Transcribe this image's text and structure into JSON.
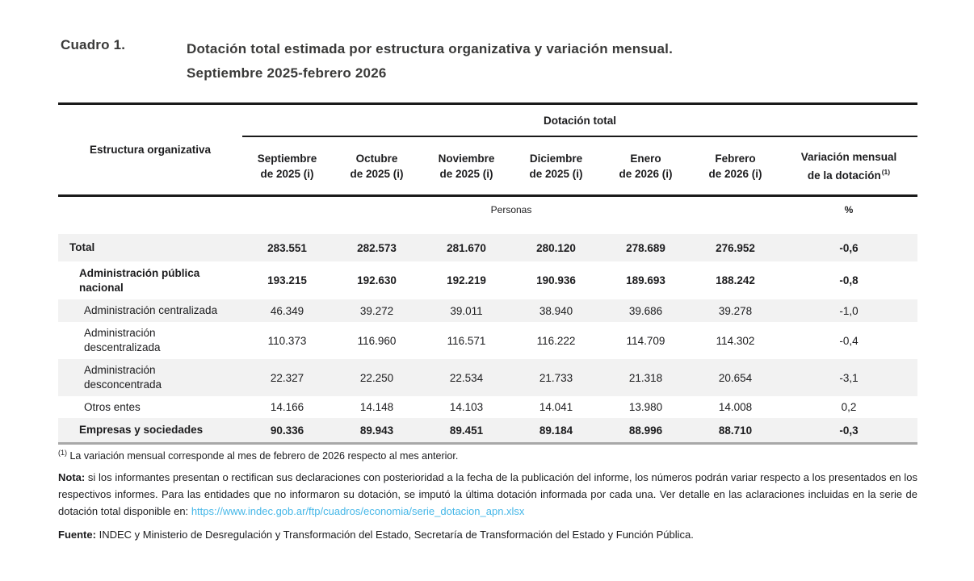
{
  "title": {
    "label": "Cuadro 1.",
    "line1": "Dotación total estimada por estructura organizativa y variación mensual.",
    "line2": "Septiembre 2025-febrero 2026"
  },
  "table": {
    "spanner": "Dotación total",
    "row_header": "Estructura organizativa",
    "columns": [
      {
        "line1": "Septiembre",
        "line2": "de 2025 (i)"
      },
      {
        "line1": "Octubre",
        "line2": "de 2025 (i)"
      },
      {
        "line1": "Noviembre",
        "line2": "de 2025 (i)"
      },
      {
        "line1": "Diciembre",
        "line2": "de 2025 (i)"
      },
      {
        "line1": "Enero",
        "line2": "de 2026 (i)"
      },
      {
        "line1": "Febrero",
        "line2": "de 2026 (i)"
      },
      {
        "line1": "Variación mensual",
        "line2": "de la dotación",
        "sup": "(1)"
      }
    ],
    "units": {
      "personas": "Personas",
      "percent": "%"
    },
    "rows": [
      {
        "label": "Total",
        "values": [
          "283.551",
          "282.573",
          "281.670",
          "280.120",
          "278.689",
          "276.952"
        ],
        "variation": "-0,6"
      },
      {
        "label": "Administración pública nacional",
        "values": [
          "193.215",
          "192.630",
          "192.219",
          "190.936",
          "189.693",
          "188.242"
        ],
        "variation": "-0,8"
      },
      {
        "label": "Administración centralizada",
        "values": [
          "46.349",
          "39.272",
          "39.011",
          "38.940",
          "39.686",
          "39.278"
        ],
        "variation": "-1,0"
      },
      {
        "label": "Administración descentralizada",
        "values": [
          "110.373",
          "116.960",
          "116.571",
          "116.222",
          "114.709",
          "114.302"
        ],
        "variation": "-0,4"
      },
      {
        "label": "Administración desconcentrada",
        "values": [
          "22.327",
          "22.250",
          "22.534",
          "21.733",
          "21.318",
          "20.654"
        ],
        "variation": "-3,1"
      },
      {
        "label": "Otros entes",
        "values": [
          "14.166",
          "14.148",
          "14.103",
          "14.041",
          "13.980",
          "14.008"
        ],
        "variation": "0,2"
      },
      {
        "label": "Empresas y sociedades",
        "values": [
          "90.336",
          "89.943",
          "89.451",
          "89.184",
          "88.996",
          "88.710"
        ],
        "variation": "-0,3"
      }
    ]
  },
  "footnotes": {
    "fn1_marker": "(1)",
    "fn1_text": "La variación mensual corresponde al mes de febrero de 2026 respecto al mes anterior.",
    "nota_label": "Nota:",
    "nota_text": "si los informantes presentan o rectifican sus declaraciones con posterioridad a la fecha de la publicación del informe, los números podrán variar respecto a los presentados en los respectivos informes. Para las entidades que no informaron su dotación, se imputó la última dotación informada por cada una. Ver detalle en las aclaraciones incluidas en la serie de dotación total disponible en:",
    "nota_link": "https://www.indec.gob.ar/ftp/cuadros/economia/serie_dotacion_apn.xlsx",
    "fuente_label": "Fuente:",
    "fuente_text": "INDEC y Ministerio de Desregulación y Transformación del Estado, Secretaría de Transformación del Estado y Función Pública."
  },
  "colors": {
    "link": "#45b7e8",
    "shaded_row": "#f2f2f2",
    "rule_dark": "#1a1a1a",
    "rule_gray": "#a8a8a8"
  }
}
